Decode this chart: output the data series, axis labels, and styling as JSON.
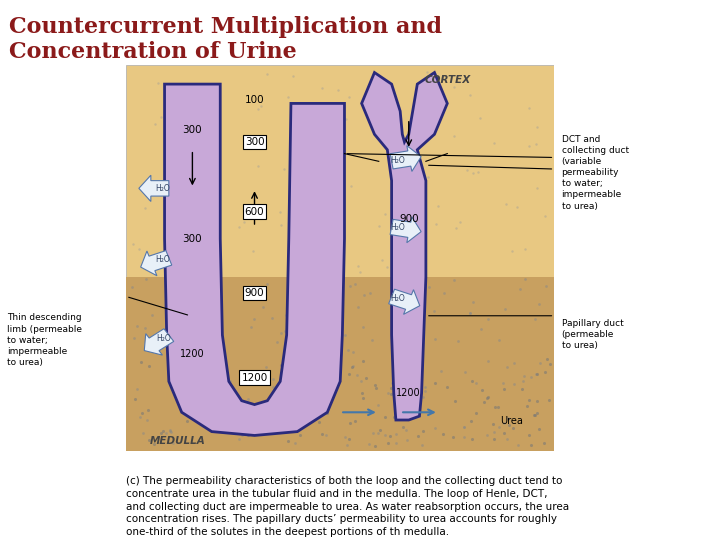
{
  "title": "Countercurrent Multiplication and\nConcentration of Urine",
  "title_color": "#8B1A1A",
  "title_fontsize": 16,
  "bg_color": "#FFFFFF",
  "caption": "(c) The permeability characteristics of both the loop and the collecting duct tend to\nconcentrate urea in the tubular fluid and in the medulla. The loop of Henle, DCT,\nand collecting duct are impermeable to urea. As water reabsorption occurs, the urea\nconcentration rises. The papillary ducts’ permeability to urea accounts for roughly\none-third of the solutes in the deepest portions of th medulla.",
  "caption_fontsize": 7.5,
  "image_bg_cortex": "#E8C882",
  "image_bg_medulla": "#C8A060",
  "tubule_fill": "#C8A8D8",
  "tubule_stroke": "#2A2A7C",
  "tubule_lw": 2.0,
  "cortex_label": "CORTEX",
  "medulla_label": "MEDULLA",
  "urea_label": "Urea",
  "dct_label": "DCT and\ncollecting duct\n(variable\npermeability\nto water;\nimpermeable\nto urea)",
  "pap_label": "Papillary duct\n(permeable\nto urea)",
  "thin_desc_label": "Thin descending\nlimb (permeable\nto water;\nimpermeable\nto urea)"
}
